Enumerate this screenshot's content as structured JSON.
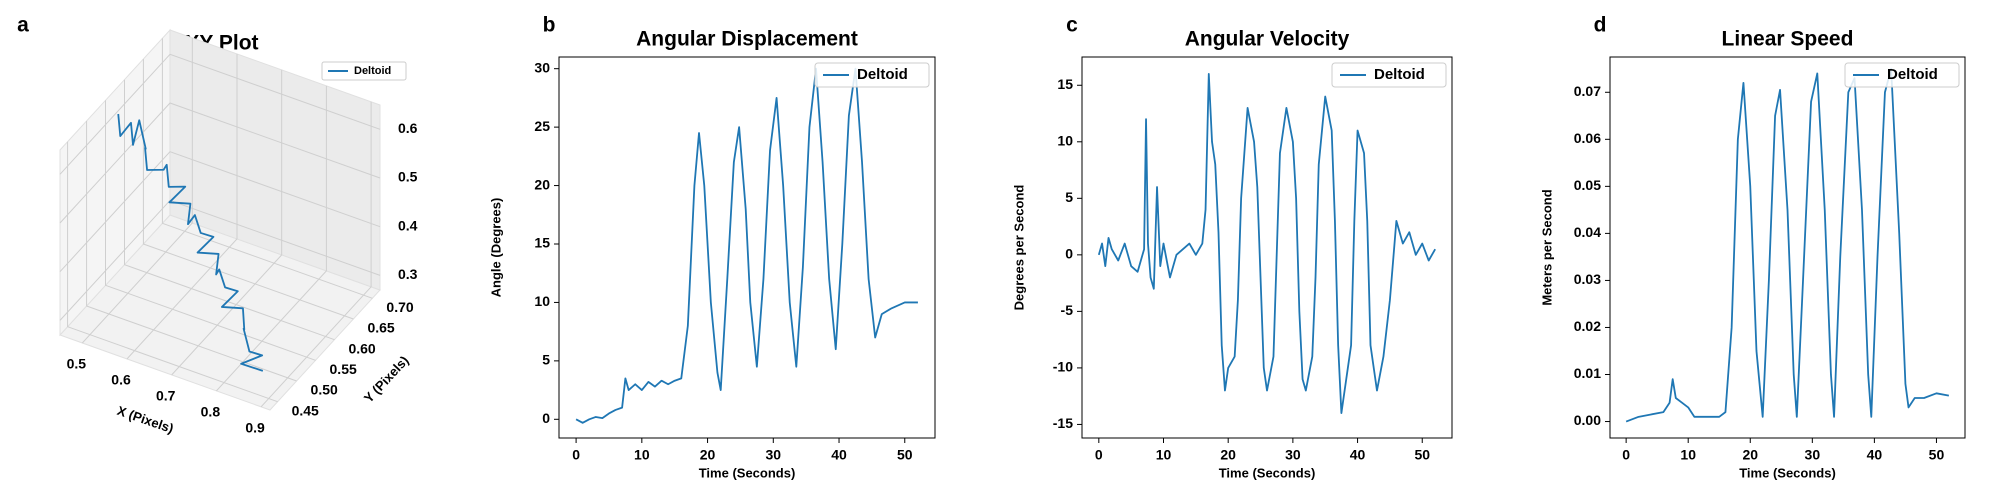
{
  "chart_data": [
    {
      "type": "line3d",
      "panel_label": "a",
      "title": "XY Plot",
      "xlabel": "X (Pixels)",
      "ylabel": "Y (Pixels)",
      "series": [
        {
          "name": "Deltoid",
          "color": "#1f77b4",
          "x": [
            0.47,
            0.5,
            0.49,
            0.52,
            0.5,
            0.54,
            0.53,
            0.56,
            0.58,
            0.57,
            0.6,
            0.62,
            0.61,
            0.64,
            0.66,
            0.65,
            0.68,
            0.7,
            0.69,
            0.72,
            0.74,
            0.73,
            0.76,
            0.78,
            0.77,
            0.8,
            0.82,
            0.81,
            0.84,
            0.86,
            0.83,
            0.87
          ],
          "y": [
            0.56,
            0.53,
            0.57,
            0.54,
            0.58,
            0.55,
            0.56,
            0.53,
            0.55,
            0.57,
            0.54,
            0.56,
            0.53,
            0.55,
            0.52,
            0.55,
            0.53,
            0.54,
            0.51,
            0.53,
            0.5,
            0.52,
            0.5,
            0.51,
            0.48,
            0.5,
            0.48,
            0.49,
            0.47,
            0.48,
            0.46,
            0.47
          ],
          "z": [
            0.62,
            0.61,
            0.6,
            0.59,
            0.6,
            0.58,
            0.57,
            0.56,
            0.55,
            0.54,
            0.53,
            0.52,
            0.51,
            0.5,
            0.49,
            0.48,
            0.47,
            0.46,
            0.45,
            0.44,
            0.43,
            0.42,
            0.41,
            0.4,
            0.39,
            0.38,
            0.36,
            0.35,
            0.33,
            0.32,
            0.31,
            0.3
          ]
        }
      ],
      "xlim": [
        0.45,
        0.92
      ],
      "ylim": [
        0.43,
        0.72
      ],
      "zlim": [
        0.27,
        0.65
      ],
      "xticks": [
        0.5,
        0.6,
        0.7,
        0.8,
        0.9
      ],
      "yticks": [
        0.45,
        {
          "value": 0.5,
          "label": "0.50"
        },
        0.55,
        {
          "value": 0.6,
          "label": "0.60"
        },
        0.65,
        {
          "value": 0.7,
          "label": "0.70"
        }
      ],
      "zticks": [
        0.3,
        0.4,
        0.5,
        0.6
      ],
      "grid": true,
      "legend": "upper right"
    },
    {
      "type": "line",
      "panel_label": "b",
      "title": "Angular Displacement",
      "xlabel": "Time (Seconds)",
      "ylabel": "Angle (Degrees)",
      "x": [
        0,
        1,
        2,
        3,
        4,
        5,
        6,
        7,
        7.5,
        8,
        9,
        10,
        11,
        12,
        13,
        14,
        15,
        16,
        17,
        18,
        18.7,
        19.5,
        20.5,
        21.5,
        22,
        23,
        24,
        24.8,
        25.8,
        26.5,
        27.5,
        28.5,
        29.5,
        30.5,
        31.5,
        32.5,
        33.5,
        34.5,
        35.5,
        36.5,
        37.5,
        38.5,
        39.5,
        40.5,
        41.5,
        42.5,
        43.5,
        44.5,
        45.5,
        46.5,
        48,
        50,
        52
      ],
      "series": [
        {
          "name": "Deltoid",
          "color": "#1f77b4",
          "values": [
            0,
            -0.3,
            0,
            0.2,
            0.1,
            0.5,
            0.8,
            1,
            3.5,
            2.5,
            3,
            2.5,
            3.2,
            2.8,
            3.3,
            3,
            3.3,
            3.5,
            8,
            20,
            24.5,
            20,
            10,
            4,
            2.5,
            12,
            22,
            25,
            18,
            10,
            4.5,
            12,
            23,
            27.5,
            20,
            10,
            4.5,
            13,
            25,
            30,
            22,
            12,
            6,
            15,
            26,
            30,
            22,
            12,
            7,
            9,
            9.5,
            10,
            10
          ]
        }
      ],
      "xlim": [
        -2.6,
        54.6
      ],
      "ylim": [
        -1.6,
        31
      ],
      "xticks": [
        0,
        10,
        20,
        30,
        40,
        50
      ],
      "yticks": [
        0,
        5,
        10,
        15,
        20,
        25,
        30
      ],
      "grid": false,
      "legend": "upper right"
    },
    {
      "type": "line",
      "panel_label": "c",
      "title": "Angular Velocity",
      "xlabel": "Time (Seconds)",
      "ylabel": "Degrees per Second",
      "x": [
        0,
        0.5,
        1,
        1.5,
        2,
        3,
        4,
        5,
        6,
        7,
        7.3,
        7.6,
        8,
        8.5,
        9,
        9.5,
        10,
        11,
        12,
        13,
        14,
        15,
        16,
        16.5,
        17,
        17.5,
        18,
        18.5,
        19,
        19.5,
        20,
        21,
        21.5,
        22,
        23,
        24,
        24.5,
        25,
        25.5,
        26,
        27,
        27.5,
        28,
        29,
        30,
        30.5,
        31,
        31.5,
        32,
        33,
        33.5,
        34,
        35,
        36,
        36.5,
        37,
        37.5,
        38,
        39,
        39.5,
        40,
        41,
        41.5,
        42,
        43,
        44,
        45,
        46,
        47,
        48,
        49,
        50,
        51,
        52
      ],
      "series": [
        {
          "name": "Deltoid",
          "color": "#1f77b4",
          "values": [
            0,
            1,
            -1,
            1.5,
            0.5,
            -0.5,
            1,
            -1,
            -1.5,
            0.5,
            12,
            1,
            -2,
            -3,
            6,
            -1,
            1,
            -2,
            0,
            0.5,
            1,
            0,
            1,
            4,
            16,
            10,
            8,
            2,
            -8,
            -12,
            -10,
            -9,
            -4,
            5,
            13,
            10,
            6,
            -2,
            -10,
            -12,
            -9,
            0,
            9,
            13,
            10,
            5,
            -5,
            -11,
            -12,
            -9,
            -2,
            8,
            14,
            11,
            3,
            -8,
            -14,
            -12,
            -8,
            3,
            11,
            9,
            3,
            -8,
            -12,
            -9,
            -4,
            3,
            1,
            2,
            0,
            1,
            -0.5,
            0.5
          ]
        }
      ],
      "xlim": [
        -2.6,
        54.6
      ],
      "ylim": [
        -16.2,
        17.5
      ],
      "xticks": [
        0,
        10,
        20,
        30,
        40,
        50
      ],
      "yticks": [
        -15,
        -10,
        -5,
        0,
        5,
        10,
        15
      ],
      "grid": false,
      "legend": "upper right"
    },
    {
      "type": "line",
      "panel_label": "d",
      "title": "Linear Speed",
      "xlabel": "Time (Seconds)",
      "ylabel": "Meters per Second",
      "x": [
        0,
        2,
        4,
        6,
        7,
        7.5,
        8,
        9,
        10,
        11,
        13,
        15,
        16,
        17,
        18,
        18.9,
        20,
        21,
        21.5,
        22,
        23,
        24,
        24.8,
        26,
        27,
        27.5,
        28.5,
        29.8,
        30.8,
        32,
        33,
        33.5,
        34.5,
        35.8,
        36.8,
        38,
        39,
        39.5,
        40.5,
        41.7,
        42.7,
        44,
        45,
        45.5,
        46.5,
        48,
        50,
        52
      ],
      "series": [
        {
          "name": "Deltoid",
          "color": "#1f77b4",
          "values": [
            0,
            0.001,
            0.0015,
            0.002,
            0.004,
            0.009,
            0.005,
            0.004,
            0.003,
            0.001,
            0.001,
            0.001,
            0.002,
            0.02,
            0.06,
            0.072,
            0.05,
            0.015,
            0.008,
            0.001,
            0.03,
            0.065,
            0.0705,
            0.045,
            0.01,
            0.001,
            0.03,
            0.068,
            0.074,
            0.045,
            0.01,
            0.001,
            0.035,
            0.07,
            0.073,
            0.045,
            0.01,
            0.001,
            0.035,
            0.07,
            0.075,
            0.04,
            0.008,
            0.003,
            0.005,
            0.005,
            0.006,
            0.0055
          ]
        }
      ],
      "xlim": [
        -2.6,
        54.6
      ],
      "ylim": [
        -0.0035,
        0.0775
      ],
      "xticks": [
        0,
        10,
        20,
        30,
        40,
        50
      ],
      "yticks": [
        {
          "value": 0,
          "label": "0.00"
        },
        {
          "value": 0.01,
          "label": "0.01"
        },
        {
          "value": 0.02,
          "label": "0.02"
        },
        {
          "value": 0.03,
          "label": "0.03"
        },
        {
          "value": 0.04,
          "label": "0.04"
        },
        {
          "value": 0.05,
          "label": "0.05"
        },
        {
          "value": 0.06,
          "label": "0.06"
        },
        {
          "value": 0.07,
          "label": "0.07"
        }
      ],
      "grid": false,
      "legend": "upper right"
    }
  ]
}
